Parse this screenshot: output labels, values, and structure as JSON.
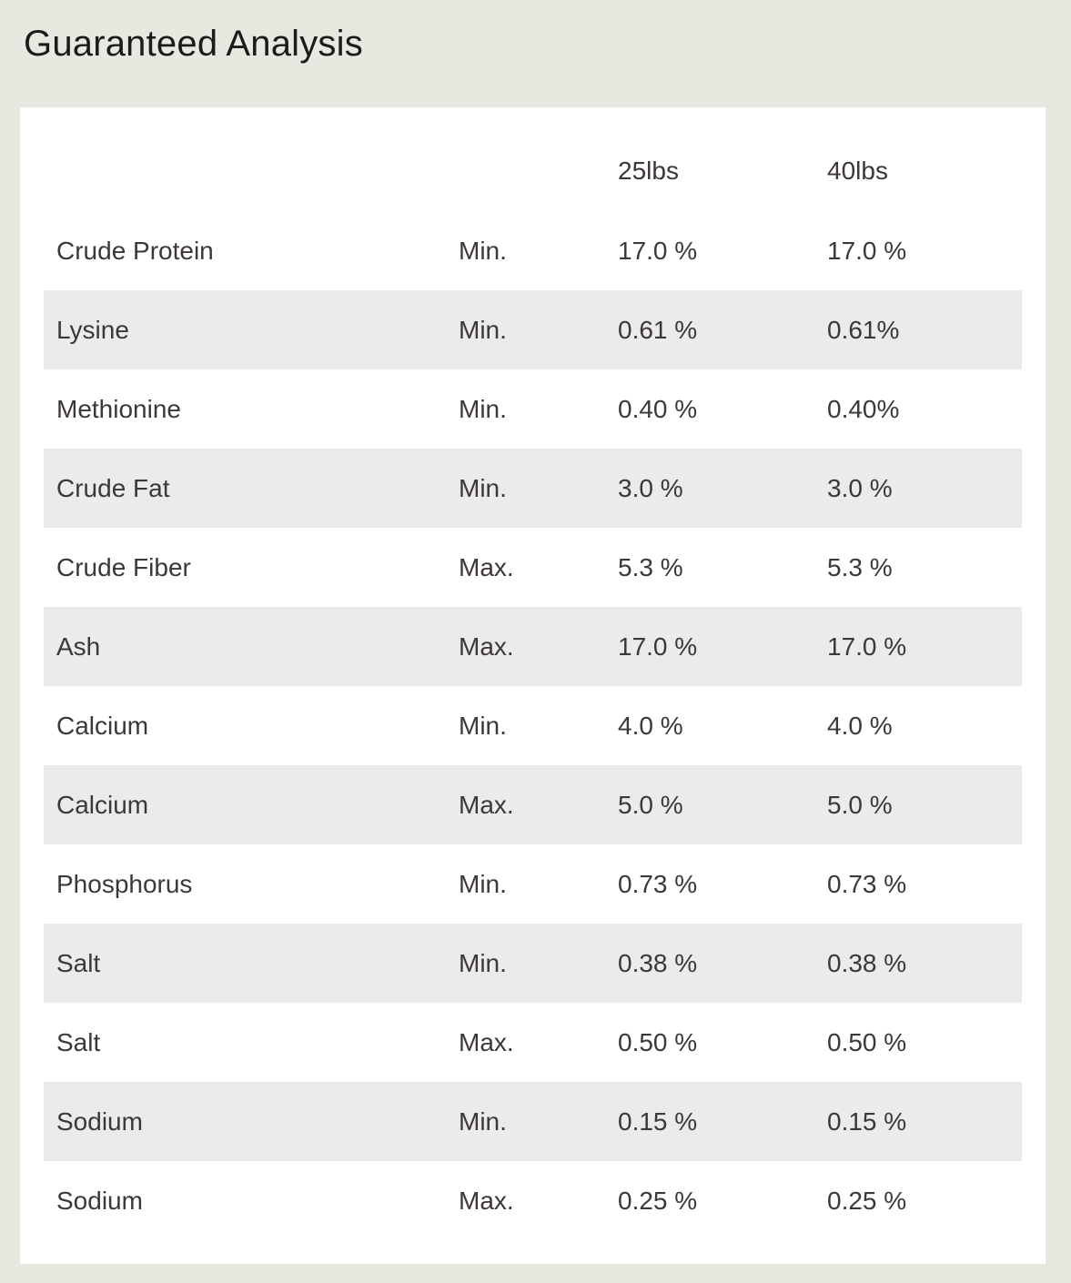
{
  "page": {
    "title": "Guaranteed Analysis"
  },
  "colors": {
    "page_background": "#e9e8e0",
    "card_background": "#ffffff",
    "row_stripe": "#ebebeb",
    "text": "#3d3835",
    "title_text": "#1d1b19"
  },
  "table": {
    "headers": {
      "nutrient": "",
      "basis": "",
      "weight_25": "25lbs",
      "weight_40": "40lbs"
    },
    "rows": [
      {
        "nutrient": "Crude Protein",
        "basis": "Min.",
        "v25": "17.0 %",
        "v40": "17.0 %"
      },
      {
        "nutrient": "Lysine",
        "basis": "Min.",
        "v25": "0.61 %",
        "v40": "0.61%"
      },
      {
        "nutrient": "Methionine",
        "basis": "Min.",
        "v25": "0.40 %",
        "v40": "0.40%"
      },
      {
        "nutrient": "Crude Fat",
        "basis": "Min.",
        "v25": "3.0 %",
        "v40": "3.0 %"
      },
      {
        "nutrient": "Crude Fiber",
        "basis": "Max.",
        "v25": "5.3 %",
        "v40": "5.3 %"
      },
      {
        "nutrient": "Ash",
        "basis": "Max.",
        "v25": "17.0 %",
        "v40": "17.0 %"
      },
      {
        "nutrient": "Calcium",
        "basis": "Min.",
        "v25": "4.0 %",
        "v40": "4.0 %"
      },
      {
        "nutrient": "Calcium",
        "basis": "Max.",
        "v25": "5.0 %",
        "v40": "5.0 %"
      },
      {
        "nutrient": "Phosphorus",
        "basis": "Min.",
        "v25": "0.73 %",
        "v40": "0.73 %"
      },
      {
        "nutrient": "Salt",
        "basis": "Min.",
        "v25": "0.38 %",
        "v40": "0.38 %"
      },
      {
        "nutrient": "Salt",
        "basis": "Max.",
        "v25": "0.50 %",
        "v40": "0.50 %"
      },
      {
        "nutrient": "Sodium",
        "basis": "Min.",
        "v25": "0.15 %",
        "v40": "0.15 %"
      },
      {
        "nutrient": "Sodium",
        "basis": "Max.",
        "v25": "0.25 %",
        "v40": "0.25 %"
      }
    ]
  }
}
